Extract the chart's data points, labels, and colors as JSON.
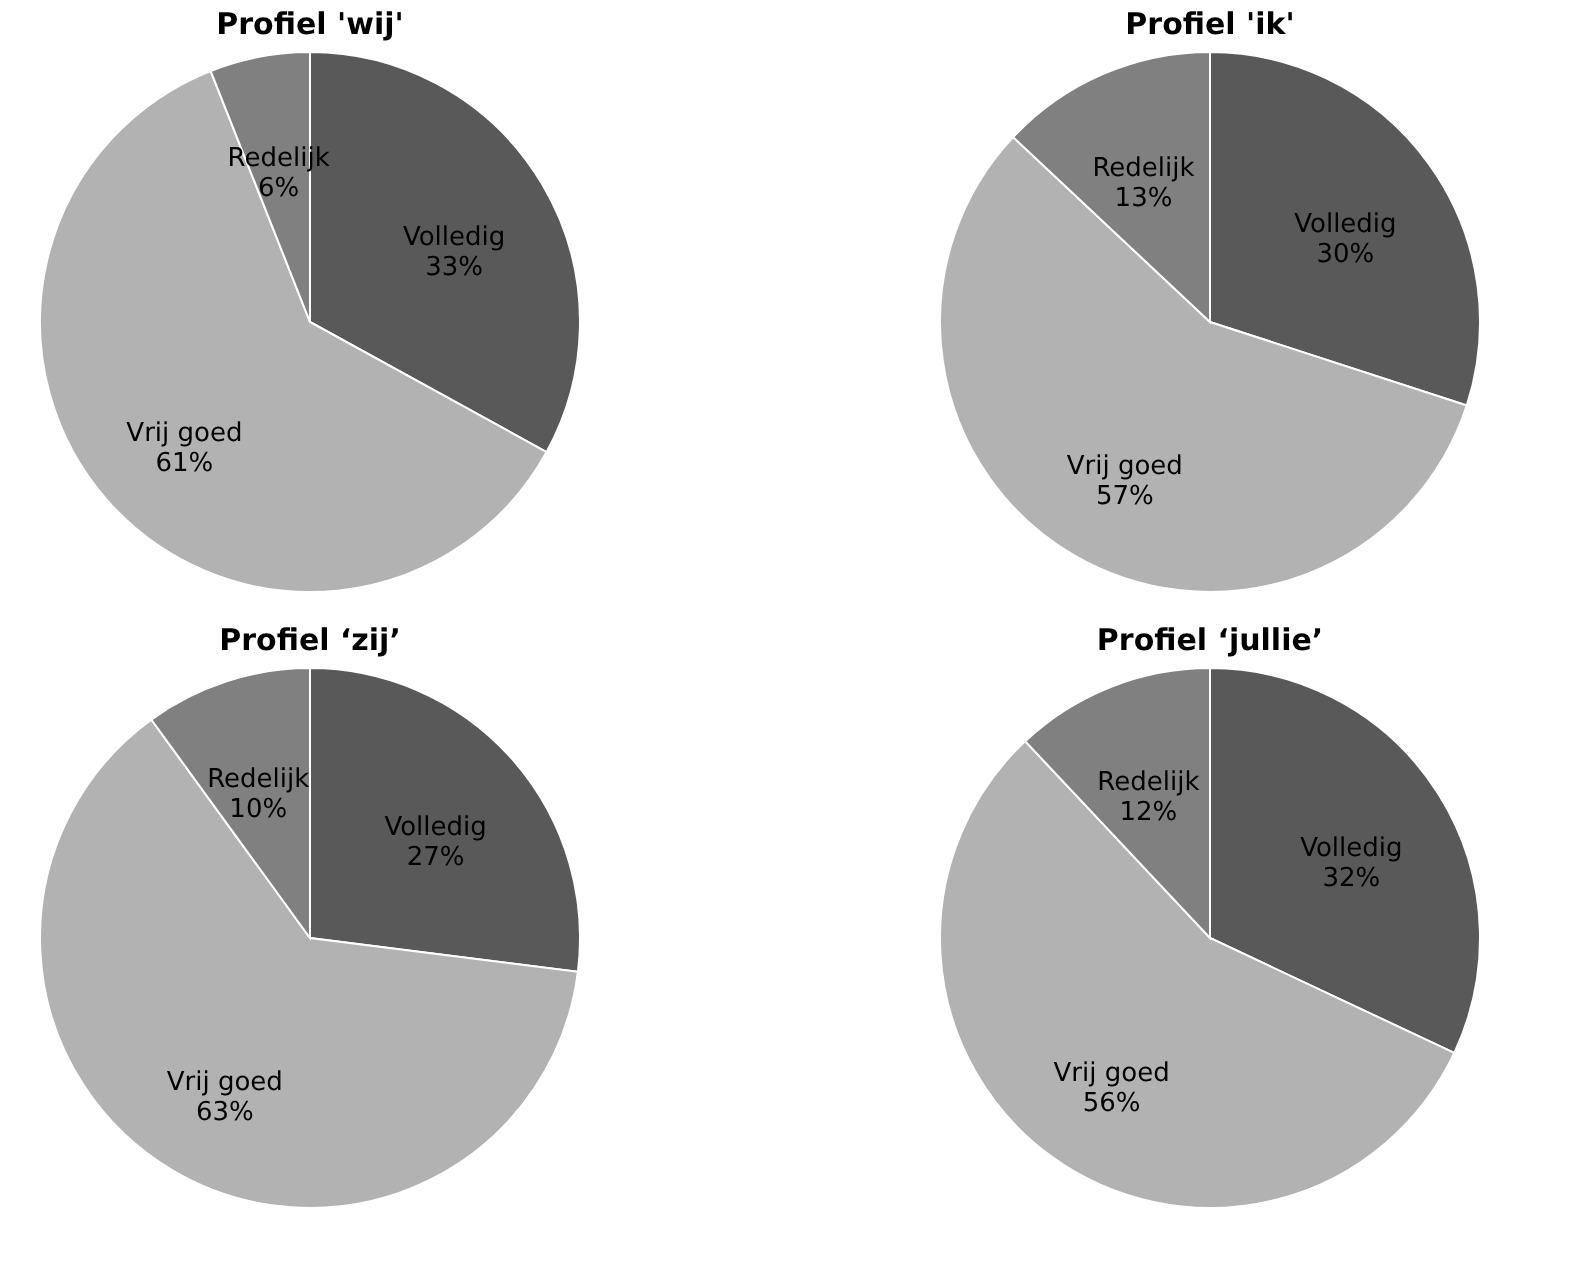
{
  "chart_data": [
    {
      "type": "pie",
      "title": "Profiel 'wij'",
      "categories": [
        "Volledig",
        "Vrij goed",
        "Redelijk"
      ],
      "values": [
        33,
        61,
        6
      ],
      "colors": [
        "#595959",
        "#b2b2b2",
        "#808080"
      ],
      "value_labels": [
        "33%",
        "61%",
        "6%"
      ]
    },
    {
      "type": "pie",
      "title": "Profiel 'ik'",
      "categories": [
        "Volledig",
        "Vrij goed",
        "Redelijk"
      ],
      "values": [
        30,
        57,
        13
      ],
      "colors": [
        "#595959",
        "#b2b2b2",
        "#808080"
      ],
      "value_labels": [
        "30%",
        "57%",
        "13%"
      ]
    },
    {
      "type": "pie",
      "title": "Profiel ‘zij’",
      "categories": [
        "Volledig",
        "Vrij goed",
        "Redelijk"
      ],
      "values": [
        27,
        63,
        10
      ],
      "colors": [
        "#595959",
        "#b2b2b2",
        "#808080"
      ],
      "value_labels": [
        "27%",
        "63%",
        "10%"
      ]
    },
    {
      "type": "pie",
      "title": "Profiel ‘jullie’",
      "categories": [
        "Volledig",
        "Vrij goed",
        "Redelijk"
      ],
      "values": [
        32,
        56,
        12
      ],
      "colors": [
        "#595959",
        "#b2b2b2",
        "#808080"
      ],
      "value_labels": [
        "32%",
        "56%",
        "12%"
      ]
    }
  ]
}
